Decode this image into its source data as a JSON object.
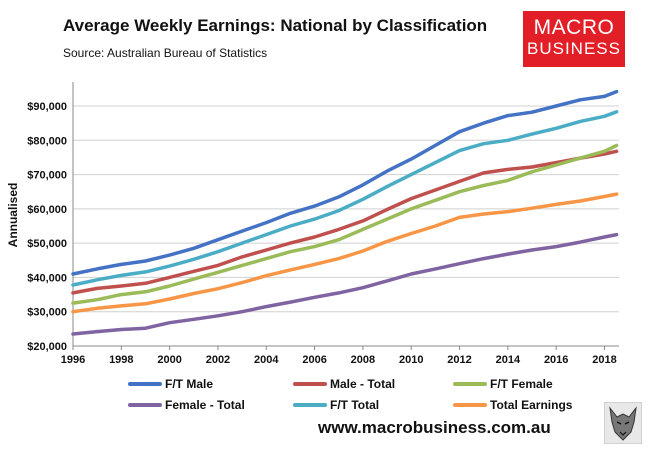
{
  "title": "Average Weekly Earnings: National by Classification",
  "source": "Source: Australian Bureau of Statistics",
  "logo": {
    "line1": "MACRO",
    "line2": "BUSINESS"
  },
  "footer_url": "www.macrobusiness.com.au",
  "chart_data": {
    "type": "line",
    "title": "Average Weekly Earnings: National by Classification",
    "xlabel": "",
    "ylabel": "Annualised",
    "xlim": [
      1996,
      2018.6
    ],
    "ylim": [
      20000,
      97000
    ],
    "x_ticks": [
      1996,
      1998,
      2000,
      2002,
      2004,
      2006,
      2008,
      2010,
      2012,
      2014,
      2016,
      2018
    ],
    "y_ticks": [
      20000,
      30000,
      40000,
      50000,
      60000,
      70000,
      80000,
      90000
    ],
    "y_tick_labels": [
      "$20,000",
      "$30,000",
      "$40,000",
      "$50,000",
      "$60,000",
      "$70,000",
      "$80,000",
      "$90,000"
    ],
    "x_tick_labels": [
      "1996",
      "1998",
      "2000",
      "2002",
      "2004",
      "2006",
      "2008",
      "2010",
      "2012",
      "2014",
      "2016",
      "2018"
    ],
    "legend_position": "bottom",
    "series": [
      {
        "name": "F/T Male",
        "color": "#4472c4",
        "x": [
          1996,
          1997,
          1998,
          1999,
          2000,
          2001,
          2002,
          2003,
          2004,
          2005,
          2006,
          2007,
          2008,
          2009,
          2010,
          2011,
          2012,
          2013,
          2014,
          2015,
          2016,
          2017,
          2018,
          2018.5
        ],
        "values": [
          41000,
          42500,
          43800,
          44800,
          46500,
          48500,
          51000,
          53500,
          56000,
          58700,
          60800,
          63500,
          67000,
          71000,
          74500,
          78500,
          82500,
          85000,
          87200,
          88200,
          90000,
          91800,
          92800,
          94200
        ]
      },
      {
        "name": "Male - Total",
        "color": "#c0504d",
        "x": [
          1996,
          1997,
          1998,
          1999,
          2000,
          2001,
          2002,
          2003,
          2004,
          2005,
          2006,
          2007,
          2008,
          2009,
          2010,
          2011,
          2012,
          2013,
          2014,
          2015,
          2016,
          2017,
          2018,
          2018.5
        ],
        "values": [
          35500,
          36800,
          37500,
          38300,
          40000,
          41800,
          43500,
          46000,
          48000,
          50000,
          51800,
          54000,
          56500,
          59800,
          63000,
          65500,
          68000,
          70500,
          71500,
          72200,
          73500,
          74800,
          76000,
          76800
        ]
      },
      {
        "name": "F/T Female",
        "color": "#9bbb59",
        "x": [
          1996,
          1997,
          1998,
          1999,
          2000,
          2001,
          2002,
          2003,
          2004,
          2005,
          2006,
          2007,
          2008,
          2009,
          2010,
          2011,
          2012,
          2013,
          2014,
          2015,
          2016,
          2017,
          2018,
          2018.5
        ],
        "values": [
          32500,
          33500,
          35000,
          35800,
          37500,
          39500,
          41500,
          43500,
          45500,
          47500,
          49000,
          51000,
          54000,
          57000,
          60000,
          62500,
          65000,
          66800,
          68300,
          70800,
          72800,
          74800,
          76800,
          78500
        ]
      },
      {
        "name": "Female - Total",
        "color": "#8064a2",
        "x": [
          1996,
          1997,
          1998,
          1999,
          2000,
          2001,
          2002,
          2003,
          2004,
          2005,
          2006,
          2007,
          2008,
          2009,
          2010,
          2011,
          2012,
          2013,
          2014,
          2015,
          2016,
          2017,
          2018,
          2018.5
        ],
        "values": [
          23500,
          24200,
          24800,
          25200,
          26800,
          27800,
          28800,
          30000,
          31500,
          32800,
          34200,
          35500,
          37000,
          39000,
          41000,
          42500,
          44000,
          45500,
          46800,
          48000,
          49000,
          50300,
          51800,
          52500
        ]
      },
      {
        "name": "F/T Total",
        "color": "#4bacc6",
        "x": [
          1996,
          1997,
          1998,
          1999,
          2000,
          2001,
          2002,
          2003,
          2004,
          2005,
          2006,
          2007,
          2008,
          2009,
          2010,
          2011,
          2012,
          2013,
          2014,
          2015,
          2016,
          2017,
          2018,
          2018.5
        ],
        "values": [
          37800,
          39300,
          40600,
          41600,
          43300,
          45300,
          47500,
          50000,
          52500,
          55000,
          57000,
          59500,
          62800,
          66500,
          70000,
          73500,
          77000,
          79000,
          80000,
          81800,
          83500,
          85500,
          87000,
          88300
        ]
      },
      {
        "name": "Total Earnings",
        "color": "#f79646",
        "x": [
          1996,
          1997,
          1998,
          1999,
          2000,
          2001,
          2002,
          2003,
          2004,
          2005,
          2006,
          2007,
          2008,
          2009,
          2010,
          2011,
          2012,
          2013,
          2014,
          2015,
          2016,
          2017,
          2018,
          2018.5
        ],
        "values": [
          30000,
          31000,
          31700,
          32300,
          33700,
          35300,
          36700,
          38500,
          40500,
          42200,
          43800,
          45500,
          47700,
          50500,
          52800,
          55000,
          57500,
          58500,
          59200,
          60200,
          61300,
          62300,
          63600,
          64300
        ]
      }
    ]
  }
}
